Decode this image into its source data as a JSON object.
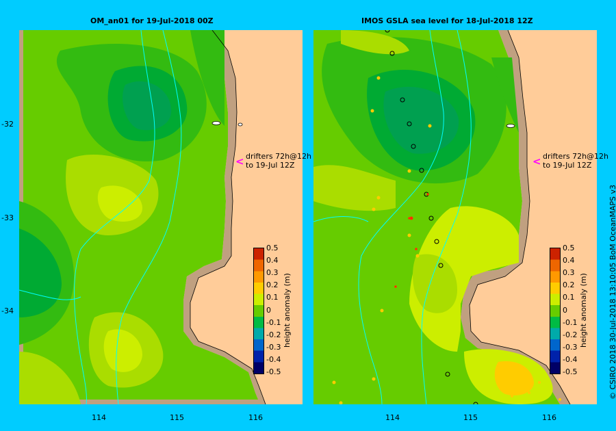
{
  "panels": {
    "left_title": "OM_an01  for 19-Jul-2018 00Z",
    "right_title": "IMOS GSLA sea level  for 18-Jul-2018 12Z"
  },
  "axes": {
    "lat_ticks": [
      "-32",
      "-33",
      "-34"
    ],
    "lon_ticks": [
      "114",
      "115",
      "116"
    ]
  },
  "colorbar": {
    "label": "height anomaly (m)",
    "ticks": [
      "0.5",
      "0.4",
      "0.3",
      "0.2",
      "0.1",
      "0",
      "-0.1",
      "-0.2",
      "-0.3",
      "-0.4",
      "-0.5"
    ],
    "colors": [
      "#cc2200",
      "#ee6600",
      "#ff9900",
      "#ffcc00",
      "#ccee00",
      "#66cc00",
      "#00bb44",
      "#00aaaa",
      "#0066cc",
      "#0022aa",
      "#000066"
    ]
  },
  "drifters": {
    "line1": "drifters 72h@12h",
    "line2": "to 19-Jul 12Z",
    "arrow": "<"
  },
  "credit": "© CSIRO 2018   30-Jul-2018 13:10:05 BoM OceanMAPS v3",
  "colors": {
    "background": "#00ccff",
    "land": "#ffcc99",
    "shelf": "#c0a080",
    "bathymetry_contour": "#00ffff",
    "drifter_arrow": "#ff00ff"
  }
}
